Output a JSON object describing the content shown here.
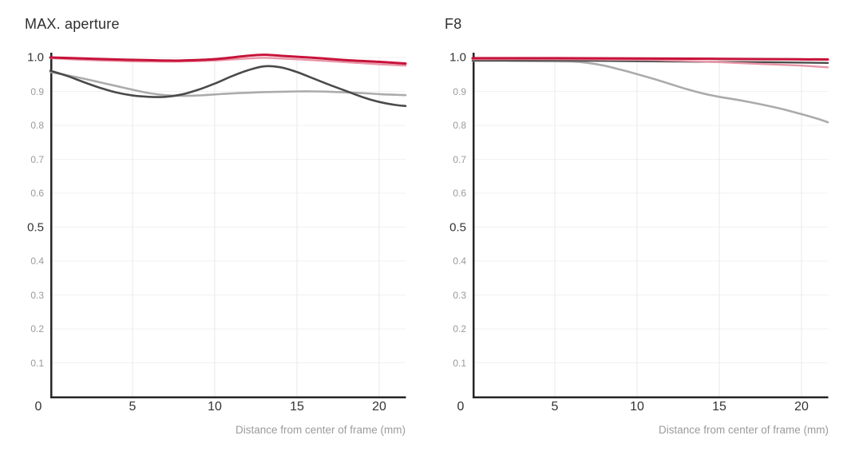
{
  "page": {
    "background": "#ffffff"
  },
  "chart_data": [
    {
      "type": "line",
      "title": "MAX. aperture",
      "xlabel": "Distance from center of frame (mm)",
      "xlim": [
        0,
        21.6
      ],
      "ylim": [
        0,
        1.0
      ],
      "xticks": [
        0,
        5,
        10,
        15,
        20
      ],
      "yticks": [
        0.1,
        0.2,
        0.3,
        0.4,
        0.5,
        0.6,
        0.7,
        0.8,
        0.9,
        1.0
      ],
      "yticks_emphasized": [
        0.5,
        1.0
      ],
      "grid": true,
      "legend": "none",
      "axis_color": "#262626",
      "grid_color_v": "#e9e9e9",
      "grid_color_h": "#f1f1f1",
      "series": [
        {
          "name": "light-gray-line",
          "color": "#ababab",
          "width": 2.6,
          "points": [
            [
              0,
              0.957
            ],
            [
              1,
              0.948
            ],
            [
              2,
              0.938
            ],
            [
              3,
              0.927
            ],
            [
              4,
              0.916
            ],
            [
              5,
              0.905
            ],
            [
              6,
              0.895
            ],
            [
              7,
              0.889
            ],
            [
              8,
              0.887
            ],
            [
              9,
              0.888
            ],
            [
              10,
              0.891
            ],
            [
              11,
              0.894
            ],
            [
              12,
              0.896
            ],
            [
              13,
              0.898
            ],
            [
              14,
              0.899
            ],
            [
              15,
              0.9
            ],
            [
              16,
              0.9
            ],
            [
              17,
              0.899
            ],
            [
              18,
              0.897
            ],
            [
              19,
              0.895
            ],
            [
              20,
              0.892
            ],
            [
              21,
              0.89
            ],
            [
              21.6,
              0.889
            ]
          ]
        },
        {
          "name": "dark-gray-line",
          "color": "#4a4a4a",
          "width": 2.6,
          "points": [
            [
              0,
              0.961
            ],
            [
              1,
              0.946
            ],
            [
              2,
              0.928
            ],
            [
              3,
              0.911
            ],
            [
              4,
              0.897
            ],
            [
              5,
              0.888
            ],
            [
              6,
              0.884
            ],
            [
              7,
              0.884
            ],
            [
              8,
              0.891
            ],
            [
              9,
              0.905
            ],
            [
              10,
              0.923
            ],
            [
              11,
              0.944
            ],
            [
              12,
              0.962
            ],
            [
              13,
              0.974
            ],
            [
              14,
              0.971
            ],
            [
              15,
              0.957
            ],
            [
              16,
              0.938
            ],
            [
              17,
              0.919
            ],
            [
              18,
              0.901
            ],
            [
              19,
              0.883
            ],
            [
              20,
              0.869
            ],
            [
              21,
              0.86
            ],
            [
              21.6,
              0.857
            ]
          ]
        },
        {
          "name": "pink-line",
          "color": "#e795a6",
          "width": 2.4,
          "points": [
            [
              0,
              0.998
            ],
            [
              2,
              0.993
            ],
            [
              4,
              0.99
            ],
            [
              6,
              0.988
            ],
            [
              8,
              0.988
            ],
            [
              10,
              0.991
            ],
            [
              12,
              0.997
            ],
            [
              13,
              0.999
            ],
            [
              14,
              0.997
            ],
            [
              16,
              0.992
            ],
            [
              18,
              0.986
            ],
            [
              20,
              0.98
            ],
            [
              21.6,
              0.976
            ]
          ]
        },
        {
          "name": "red-line",
          "color": "#c8123a",
          "width": 3,
          "points": [
            [
              0,
              1.0
            ],
            [
              2,
              0.997
            ],
            [
              4,
              0.994
            ],
            [
              6,
              0.992
            ],
            [
              7,
              0.991
            ],
            [
              8,
              0.991
            ],
            [
              10,
              0.995
            ],
            [
              12,
              1.005
            ],
            [
              13,
              1.008
            ],
            [
              14,
              1.005
            ],
            [
              16,
              0.999
            ],
            [
              18,
              0.992
            ],
            [
              20,
              0.987
            ],
            [
              21.6,
              0.982
            ]
          ]
        }
      ]
    },
    {
      "type": "line",
      "title": "F8",
      "xlabel": "Distance from center of frame (mm)",
      "xlim": [
        0,
        21.6
      ],
      "ylim": [
        0,
        1.0
      ],
      "xticks": [
        0,
        5,
        10,
        15,
        20
      ],
      "yticks": [
        0.1,
        0.2,
        0.3,
        0.4,
        0.5,
        0.6,
        0.7,
        0.8,
        0.9,
        1.0
      ],
      "yticks_emphasized": [
        0.5,
        1.0
      ],
      "grid": true,
      "legend": "none",
      "axis_color": "#262626",
      "grid_color_v": "#e9e9e9",
      "grid_color_h": "#f1f1f1",
      "series": [
        {
          "name": "light-gray-line",
          "color": "#ababab",
          "width": 2.6,
          "points": [
            [
              0,
              0.99
            ],
            [
              2,
              0.99
            ],
            [
              4,
              0.989
            ],
            [
              6,
              0.988
            ],
            [
              7,
              0.984
            ],
            [
              8,
              0.976
            ],
            [
              9,
              0.964
            ],
            [
              10,
              0.951
            ],
            [
              11,
              0.937
            ],
            [
              12,
              0.922
            ],
            [
              13,
              0.907
            ],
            [
              14,
              0.894
            ],
            [
              15,
              0.884
            ],
            [
              16,
              0.876
            ],
            [
              17,
              0.867
            ],
            [
              18,
              0.857
            ],
            [
              19,
              0.846
            ],
            [
              20,
              0.833
            ],
            [
              21,
              0.819
            ],
            [
              21.6,
              0.809
            ]
          ]
        },
        {
          "name": "dark-gray-line",
          "color": "#4a4a4a",
          "width": 2.4,
          "points": [
            [
              0,
              0.991
            ],
            [
              5,
              0.991
            ],
            [
              10,
              0.989
            ],
            [
              15,
              0.987
            ],
            [
              18,
              0.986
            ],
            [
              21.6,
              0.984
            ]
          ]
        },
        {
          "name": "pink-line",
          "color": "#e795a6",
          "width": 2.4,
          "points": [
            [
              0,
              0.995
            ],
            [
              5,
              0.995
            ],
            [
              10,
              0.993
            ],
            [
              12,
              0.991
            ],
            [
              14,
              0.988
            ],
            [
              16,
              0.984
            ],
            [
              18,
              0.98
            ],
            [
              20,
              0.976
            ],
            [
              21.6,
              0.971
            ]
          ]
        },
        {
          "name": "red-line",
          "color": "#c8123a",
          "width": 3,
          "points": [
            [
              0,
              0.998
            ],
            [
              5,
              0.998
            ],
            [
              10,
              0.997
            ],
            [
              15,
              0.996
            ],
            [
              18,
              0.995
            ],
            [
              21.6,
              0.994
            ]
          ]
        }
      ]
    }
  ]
}
